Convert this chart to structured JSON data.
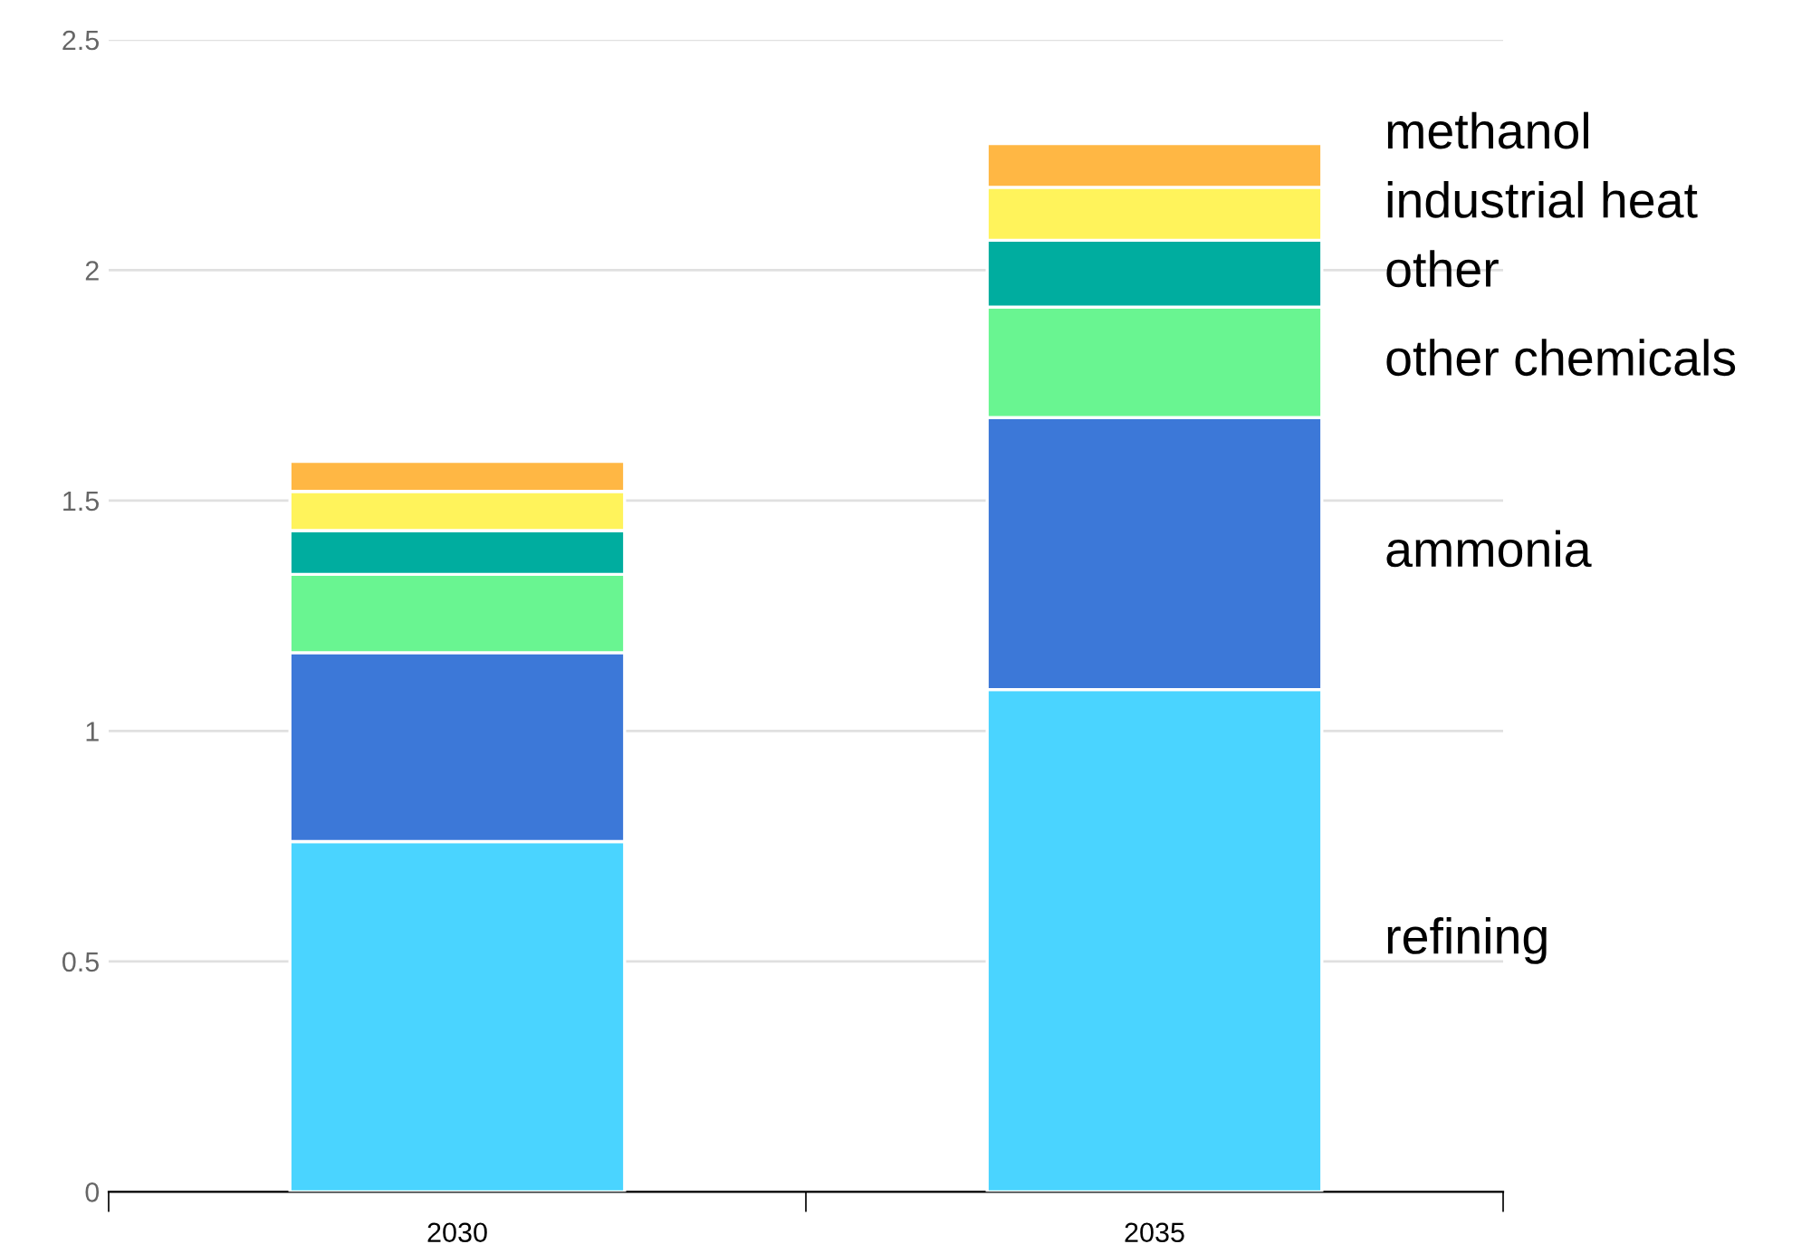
{
  "chart_data": {
    "type": "bar",
    "stacked": true,
    "categories": [
      "2030",
      "2035"
    ],
    "series": [
      {
        "name": "refining",
        "color": "#4ad4ff",
        "values": [
          0.76,
          1.09
        ]
      },
      {
        "name": "ammonia",
        "color": "#3c78d8",
        "values": [
          0.41,
          0.59
        ]
      },
      {
        "name": "other chemicals",
        "color": "#69f591",
        "values": [
          0.17,
          0.24
        ]
      },
      {
        "name": "other",
        "color": "#00ad9f",
        "values": [
          0.095,
          0.145
        ]
      },
      {
        "name": "industrial heat",
        "color": "#fff35b",
        "values": [
          0.085,
          0.115
        ]
      },
      {
        "name": "methanol",
        "color": "#ffb744",
        "values": [
          0.065,
          0.095
        ]
      }
    ],
    "ylim": [
      0,
      2.5
    ],
    "yticks": [
      0,
      0.5,
      1,
      1.5,
      2,
      2.5
    ],
    "grid": "y",
    "legend": false
  }
}
